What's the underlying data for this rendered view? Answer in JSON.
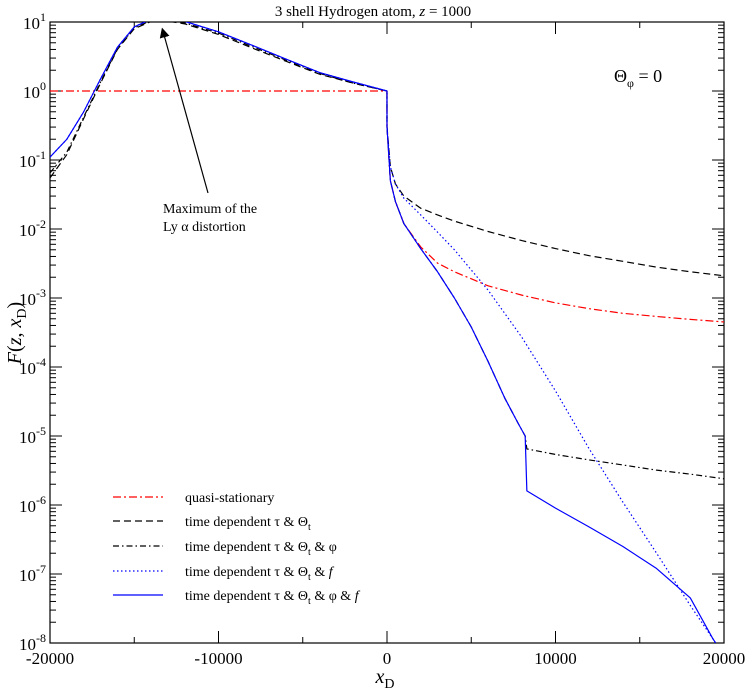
{
  "chart_data": {
    "type": "line",
    "title": "3 shell Hydrogen atom, z = 1000",
    "title_parts": {
      "prefix": "3 shell Hydrogen atom, ",
      "var": "z",
      "suffix": " = 1000"
    },
    "xlabel": "x_D",
    "xlabel_parts": {
      "main": "x",
      "sub": "D"
    },
    "ylabel": "F(z, x_D)",
    "ylabel_parts": {
      "F": "F",
      "open": "(",
      "z": "z",
      "comma": ", ",
      "x": "x",
      "sub": "D",
      "close": ")"
    },
    "xlim": [
      -20000,
      20000
    ],
    "ylim": [
      1e-08,
      20
    ],
    "yscale": "log",
    "grid": false,
    "legend_position": "bottom-left",
    "x_ticks": [
      {
        "value": -20000,
        "label": "-20000"
      },
      {
        "value": -10000,
        "label": "-10000"
      },
      {
        "value": 0,
        "label": "0"
      },
      {
        "value": 10000,
        "label": "10000"
      },
      {
        "value": 20000,
        "label": "20000"
      }
    ],
    "y_ticks": [
      {
        "exp": -8,
        "base": "10",
        "sup": "-8"
      },
      {
        "exp": -7,
        "base": "10",
        "sup": "-7"
      },
      {
        "exp": -6,
        "base": "10",
        "sup": "-6"
      },
      {
        "exp": -5,
        "base": "10",
        "sup": "-5"
      },
      {
        "exp": -4,
        "base": "10",
        "sup": "-4"
      },
      {
        "exp": -3,
        "base": "10",
        "sup": "-3"
      },
      {
        "exp": -2,
        "base": "10",
        "sup": "-2"
      },
      {
        "exp": -1,
        "base": "10",
        "sup": "-1"
      },
      {
        "exp": 0,
        "base": "10",
        "sup": "0"
      },
      {
        "exp": 1,
        "base": "10",
        "sup": "1"
      }
    ],
    "annotations": [
      {
        "id": "theta",
        "symbol": "Θ",
        "sub": "φ",
        "rest": " = 0"
      },
      {
        "id": "maximum",
        "line1": "Maximum of the",
        "line2": "Ly α distortion",
        "arrow_to": [
          -13500,
          9.5
        ]
      }
    ],
    "series": [
      {
        "id": "quasi",
        "name": "quasi-stationary",
        "color": "#ff0000",
        "dash": "8,3,2,3",
        "points": [
          [
            -20000,
            1
          ],
          [
            -1,
            1
          ],
          [
            0,
            0.3
          ],
          [
            200,
            0.05
          ],
          [
            500,
            0.025
          ],
          [
            1000,
            0.012
          ],
          [
            2000,
            0.0055
          ],
          [
            3000,
            0.0032
          ],
          [
            4000,
            0.0024
          ],
          [
            6000,
            0.0015
          ],
          [
            8000,
            0.0011
          ],
          [
            10000,
            0.00085
          ],
          [
            12000,
            0.0007
          ],
          [
            14000,
            0.0006
          ],
          [
            16000,
            0.00054
          ],
          [
            18000,
            0.00049
          ],
          [
            20000,
            0.00045
          ]
        ]
      },
      {
        "id": "td1",
        "name": "time dependent τ & Θ_t",
        "name_parts": {
          "pre": "time dependent τ & Θ",
          "sub": "t",
          "post": ""
        },
        "color": "#000000",
        "dash": "7,4",
        "points": [
          [
            -20000,
            0.055
          ],
          [
            -19000,
            0.12
          ],
          [
            -18000,
            0.4
          ],
          [
            -17000,
            1.3
          ],
          [
            -16000,
            4
          ],
          [
            -15000,
            8
          ],
          [
            -14000,
            10.2
          ],
          [
            -13000,
            10.3
          ],
          [
            -12000,
            9.4
          ],
          [
            -10000,
            6.6
          ],
          [
            -8000,
            4.2
          ],
          [
            -6000,
            2.7
          ],
          [
            -4000,
            1.75
          ],
          [
            -2000,
            1.3
          ],
          [
            -1,
            1.0
          ],
          [
            0,
            0.3
          ],
          [
            200,
            0.08
          ],
          [
            500,
            0.045
          ],
          [
            1000,
            0.03
          ],
          [
            2000,
            0.02
          ],
          [
            3000,
            0.016
          ],
          [
            4000,
            0.013
          ],
          [
            6000,
            0.0092
          ],
          [
            8000,
            0.0068
          ],
          [
            10000,
            0.0052
          ],
          [
            12000,
            0.0041
          ],
          [
            14000,
            0.0034
          ],
          [
            16000,
            0.0028
          ],
          [
            18000,
            0.0024
          ],
          [
            20000,
            0.0021
          ]
        ]
      },
      {
        "id": "td2",
        "name": "time dependent τ & Θ_t & φ",
        "name_parts": {
          "pre": "time dependent τ & Θ",
          "sub": "t",
          "post": " & φ"
        },
        "color": "#000000",
        "dash": "6,3,1.5,3",
        "points": [
          [
            -20000,
            0.065
          ],
          [
            -19000,
            0.13
          ],
          [
            -18000,
            0.42
          ],
          [
            -17000,
            1.35
          ],
          [
            -16000,
            4.1
          ],
          [
            -15000,
            8.2
          ],
          [
            -14000,
            10.5
          ],
          [
            -13000,
            10.6
          ],
          [
            -12000,
            9.7
          ],
          [
            -10000,
            6.9
          ],
          [
            -8000,
            4.4
          ],
          [
            -6000,
            2.8
          ],
          [
            -4000,
            1.8
          ],
          [
            -2000,
            1.3
          ],
          [
            -1,
            1.0
          ],
          [
            0,
            0.3
          ],
          [
            200,
            0.05
          ],
          [
            500,
            0.025
          ],
          [
            1000,
            0.012
          ],
          [
            2000,
            0.0052
          ],
          [
            3000,
            0.0024
          ],
          [
            4000,
            0.001
          ],
          [
            5000,
            0.00038
          ],
          [
            6000,
            0.00012
          ],
          [
            7000,
            3.5e-05
          ],
          [
            7800,
            1.5e-05
          ],
          [
            8200,
            1e-05
          ],
          [
            8300,
            6.5e-06
          ],
          [
            10000,
            5.4e-06
          ],
          [
            12000,
            4.5e-06
          ],
          [
            14000,
            3.8e-06
          ],
          [
            16000,
            3.2e-06
          ],
          [
            18000,
            2.8e-06
          ],
          [
            20000,
            2.4e-06
          ]
        ]
      },
      {
        "id": "td3",
        "name": "time dependent τ & Θ_t & f",
        "name_parts": {
          "pre": "time dependent τ & Θ",
          "sub": "t",
          "post": " & ",
          "italic": "f"
        },
        "color": "#0000ff",
        "dash": "1.5,2.5",
        "points": [
          [
            -20000,
            0.11
          ],
          [
            -19000,
            0.2
          ],
          [
            -18000,
            0.5
          ],
          [
            -17000,
            1.5
          ],
          [
            -16000,
            4.3
          ],
          [
            -15000,
            8.5
          ],
          [
            -14000,
            11
          ],
          [
            -13000,
            11.2
          ],
          [
            -12000,
            10.2
          ],
          [
            -10000,
            7.2
          ],
          [
            -8000,
            4.6
          ],
          [
            -6000,
            2.9
          ],
          [
            -4000,
            1.85
          ],
          [
            -2000,
            1.35
          ],
          [
            -1,
            1.0
          ],
          [
            0,
            0.3
          ],
          [
            200,
            0.08
          ],
          [
            500,
            0.045
          ],
          [
            1000,
            0.028
          ],
          [
            2000,
            0.016
          ],
          [
            3000,
            0.009
          ],
          [
            4000,
            0.005
          ],
          [
            6000,
            0.0013
          ],
          [
            8000,
            0.00027
          ],
          [
            10000,
            4.5e-05
          ],
          [
            12000,
            6.5e-06
          ],
          [
            14000,
            1.1e-06
          ],
          [
            16000,
            2e-07
          ],
          [
            18000,
            3.5e-08
          ],
          [
            19700,
            8.5e-09
          ]
        ]
      },
      {
        "id": "td4",
        "name": "time dependent τ & Θ_t & φ & f",
        "name_parts": {
          "pre": "time dependent τ & Θ",
          "sub": "t",
          "post": " & φ & ",
          "italic": "f"
        },
        "color": "#0000ff",
        "dash": "",
        "points": [
          [
            -20000,
            0.11
          ],
          [
            -19000,
            0.2
          ],
          [
            -18000,
            0.5
          ],
          [
            -17000,
            1.5
          ],
          [
            -16000,
            4.3
          ],
          [
            -15000,
            8.5
          ],
          [
            -14000,
            11
          ],
          [
            -13000,
            11.2
          ],
          [
            -12000,
            10.2
          ],
          [
            -10000,
            7.2
          ],
          [
            -8000,
            4.6
          ],
          [
            -6000,
            2.9
          ],
          [
            -4000,
            1.85
          ],
          [
            -2000,
            1.35
          ],
          [
            -1,
            1.0
          ],
          [
            0,
            0.3
          ],
          [
            200,
            0.05
          ],
          [
            500,
            0.025
          ],
          [
            1000,
            0.012
          ],
          [
            2000,
            0.0052
          ],
          [
            3000,
            0.0024
          ],
          [
            4000,
            0.001
          ],
          [
            5000,
            0.00038
          ],
          [
            6000,
            0.00012
          ],
          [
            7000,
            3.5e-05
          ],
          [
            7800,
            1.5e-05
          ],
          [
            8200,
            1e-05
          ],
          [
            8300,
            1.6e-06
          ],
          [
            10000,
            9e-07
          ],
          [
            12000,
            4.8e-07
          ],
          [
            14000,
            2.5e-07
          ],
          [
            16000,
            1.2e-07
          ],
          [
            18000,
            4.5e-08
          ],
          [
            19300,
            1.2e-08
          ],
          [
            19500,
            1e-08
          ]
        ]
      }
    ]
  }
}
